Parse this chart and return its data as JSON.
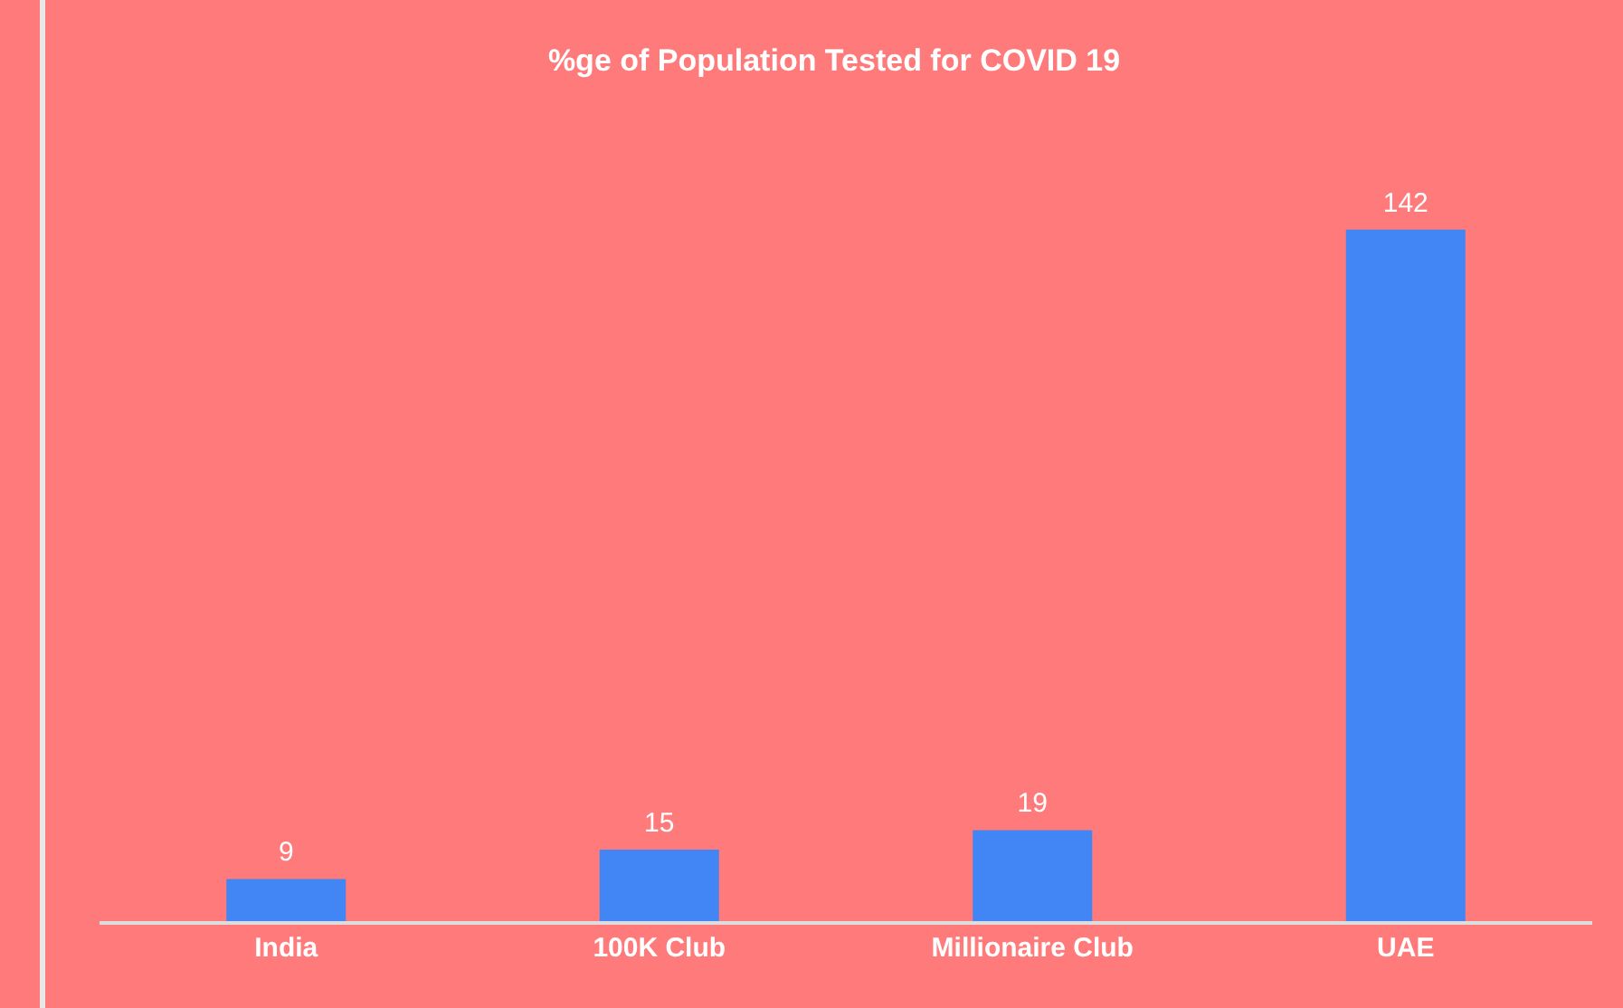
{
  "chart_data": {
    "type": "bar",
    "title": "%ge of Population  Tested for COVID 19",
    "categories": [
      "India",
      "100K Club",
      "Millionaire Club",
      "UAE"
    ],
    "values": [
      9,
      15,
      19,
      142
    ],
    "color": "#4285f4",
    "data_labels": true,
    "grid": false
  }
}
